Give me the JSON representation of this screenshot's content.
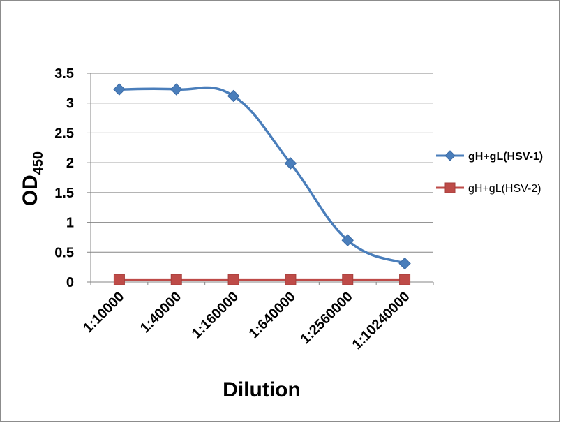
{
  "chart_data": {
    "type": "line",
    "categories": [
      "1:10000",
      "1:40000",
      "1:160000",
      "1:640000",
      "1:2560000",
      "1:10240000"
    ],
    "series": [
      {
        "name": "gH+gL(HSV-1)",
        "values": [
          3.23,
          3.23,
          3.12,
          1.99,
          0.7,
          0.31
        ],
        "color": "#4a7ebb",
        "marker": "diamond",
        "smooth": true
      },
      {
        "name": "gH+gL(HSV-2)",
        "values": [
          0.04,
          0.04,
          0.04,
          0.04,
          0.04,
          0.04
        ],
        "color": "#be4b48",
        "marker": "square",
        "smooth": true
      }
    ],
    "xlabel": "Dilution",
    "ylabel_main": "OD",
    "ylabel_sub": "450",
    "ylim": [
      0,
      3.5
    ],
    "yticks": [
      "0",
      "0.5",
      "1",
      "1.5",
      "2",
      "2.5",
      "3",
      "3.5"
    ],
    "grid": true,
    "legend_position": "right"
  }
}
